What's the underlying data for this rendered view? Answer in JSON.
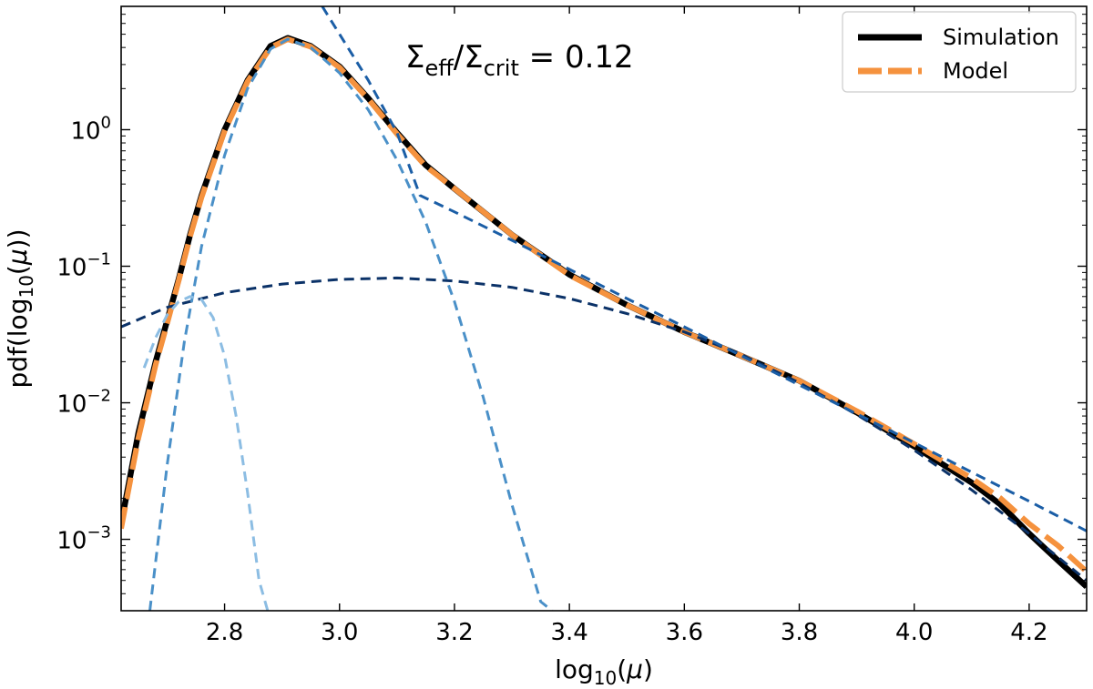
{
  "chart_data": {
    "type": "line",
    "xlabel": "log10(μ)",
    "ylabel": "pdf(log10(μ))",
    "xlim": [
      2.62,
      4.3
    ],
    "ylim": [
      0.0003,
      8
    ],
    "yscale": "log",
    "grid": false,
    "legend_position": "top-right",
    "annotation": {
      "prefix": "Σ",
      "sub1": "eff",
      "mid": "/Σ",
      "sub2": "crit",
      "suffix": " = 0.12"
    },
    "x_ticks": [
      {
        "value": 2.8,
        "label": "2.8"
      },
      {
        "value": 3.0,
        "label": "3.0"
      },
      {
        "value": 3.2,
        "label": "3.2"
      },
      {
        "value": 3.4,
        "label": "3.4"
      },
      {
        "value": 3.6,
        "label": "3.6"
      },
      {
        "value": 3.8,
        "label": "3.8"
      },
      {
        "value": 4.0,
        "label": "4.0"
      },
      {
        "value": 4.2,
        "label": "4.2"
      }
    ],
    "y_ticks": [
      {
        "value": 0.001,
        "base": "10",
        "exp": "−3"
      },
      {
        "value": 0.01,
        "base": "10",
        "exp": "−2"
      },
      {
        "value": 0.1,
        "base": "10",
        "exp": "−1"
      },
      {
        "value": 1,
        "base": "10",
        "exp": "0"
      }
    ],
    "series": [
      {
        "name": "Simulation",
        "legend": true,
        "color": "#000000",
        "style": "solid",
        "x": [
          2.62,
          2.65,
          2.68,
          2.7,
          2.72,
          2.74,
          2.76,
          2.8,
          2.84,
          2.88,
          2.91,
          2.95,
          3.0,
          3.05,
          3.1,
          3.15,
          3.2,
          3.3,
          3.4,
          3.5,
          3.6,
          3.7,
          3.8,
          3.9,
          4.0,
          4.1,
          4.15,
          4.2,
          4.25,
          4.3
        ],
        "y": [
          0.0013,
          0.006,
          0.02,
          0.04,
          0.08,
          0.17,
          0.33,
          1.0,
          2.3,
          4.1,
          4.7,
          4.1,
          2.9,
          1.7,
          0.95,
          0.55,
          0.37,
          0.17,
          0.087,
          0.052,
          0.033,
          0.022,
          0.0145,
          0.0085,
          0.0048,
          0.0026,
          0.0018,
          0.0011,
          0.0007,
          0.00045
        ]
      },
      {
        "name": "Model",
        "legend": true,
        "color": "#f5923e",
        "style": "dashed",
        "x": [
          2.62,
          2.65,
          2.68,
          2.7,
          2.72,
          2.74,
          2.76,
          2.8,
          2.84,
          2.88,
          2.91,
          2.95,
          3.0,
          3.05,
          3.1,
          3.15,
          3.2,
          3.3,
          3.4,
          3.5,
          3.6,
          3.7,
          3.8,
          3.9,
          4.0,
          4.1,
          4.15,
          4.2,
          4.25,
          4.3
        ],
        "y": [
          0.0012,
          0.0055,
          0.019,
          0.038,
          0.078,
          0.165,
          0.32,
          0.98,
          2.25,
          4.0,
          4.6,
          4.05,
          2.85,
          1.68,
          0.93,
          0.54,
          0.37,
          0.17,
          0.086,
          0.052,
          0.033,
          0.022,
          0.0145,
          0.0087,
          0.005,
          0.0028,
          0.002,
          0.0013,
          0.0009,
          0.00058
        ]
      },
      {
        "name": "",
        "legend": false,
        "color": "#0b3268",
        "style": "dashed",
        "x": [
          2.62,
          2.7,
          2.8,
          2.9,
          3.0,
          3.1,
          3.2,
          3.3,
          3.4,
          3.5,
          3.6,
          3.7,
          3.8,
          3.9,
          4.0,
          4.1,
          4.2,
          4.3
        ],
        "y": [
          0.036,
          0.05,
          0.064,
          0.074,
          0.08,
          0.082,
          0.078,
          0.07,
          0.058,
          0.045,
          0.033,
          0.0225,
          0.014,
          0.0082,
          0.0045,
          0.0023,
          0.0011,
          0.0005
        ]
      },
      {
        "name": "",
        "legend": false,
        "color": "#1b5ea6",
        "style": "dashed",
        "x": [
          2.97,
          3.0,
          3.05,
          3.1,
          3.14,
          3.2,
          3.3,
          3.4,
          3.5,
          3.6,
          3.7,
          3.8,
          3.9,
          4.0,
          4.1,
          4.2,
          4.3
        ],
        "y": [
          8.0,
          5.0,
          2.3,
          0.95,
          0.33,
          0.25,
          0.155,
          0.095,
          0.058,
          0.036,
          0.022,
          0.0135,
          0.0083,
          0.0051,
          0.0031,
          0.0019,
          0.00115
        ]
      },
      {
        "name": "",
        "legend": false,
        "color": "#4a90c8",
        "style": "dashed",
        "x": [
          2.67,
          2.7,
          2.73,
          2.76,
          2.8,
          2.84,
          2.88,
          2.91,
          2.95,
          3.0,
          3.05,
          3.1,
          3.15,
          3.2,
          3.25,
          3.3,
          3.35,
          3.37
        ],
        "y": [
          0.0003,
          0.0035,
          0.028,
          0.14,
          0.65,
          2.0,
          3.9,
          4.6,
          4.0,
          2.6,
          1.4,
          0.6,
          0.21,
          0.055,
          0.011,
          0.0018,
          0.00035,
          0.0003
        ]
      },
      {
        "name": "",
        "legend": false,
        "color": "#8cbde3",
        "style": "dashed",
        "x": [
          2.66,
          2.68,
          2.7,
          2.72,
          2.74,
          2.76,
          2.78,
          2.8,
          2.82,
          2.84,
          2.86,
          2.875
        ],
        "y": [
          0.018,
          0.03,
          0.044,
          0.055,
          0.06,
          0.057,
          0.042,
          0.022,
          0.008,
          0.0022,
          0.0005,
          0.0003
        ]
      }
    ]
  }
}
